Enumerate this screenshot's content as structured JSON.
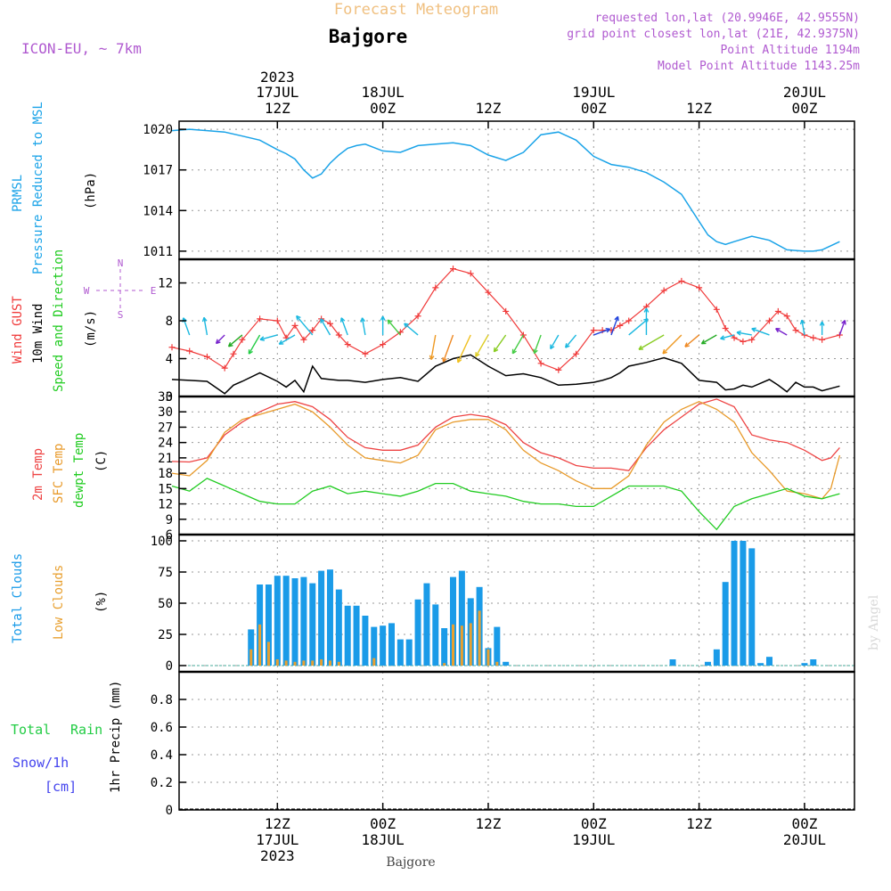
{
  "header": {
    "title": "Forecast Meteogram",
    "location": "Bajgore",
    "model": "ICON-EU, ~ 7km",
    "requested": "requested lon,lat (20.9946E, 42.9555N)",
    "grid_point": "grid point closest lon,lat (21E, 42.9375N)",
    "point_altitude": "Point Altitude 1194m",
    "model_altitude": "Model Point Altitude 1143.25m",
    "footer_location": "Bajgore",
    "watermark": "by Angel"
  },
  "time_axis": {
    "top_labels": [
      {
        "l1": "2023",
        "l2": "17JUL",
        "l3": "12Z"
      },
      {
        "l1": "",
        "l2": "18JUL",
        "l3": "00Z"
      },
      {
        "l1": "",
        "l2": "",
        "l3": "12Z"
      },
      {
        "l1": "",
        "l2": "19JUL",
        "l3": "00Z"
      },
      {
        "l1": "",
        "l2": "",
        "l3": "12Z"
      },
      {
        "l1": "",
        "l2": "20JUL",
        "l3": "00Z"
      }
    ],
    "bottom_labels": [
      {
        "l1": "12Z",
        "l2": "17JUL",
        "l3": "2023"
      },
      {
        "l1": "00Z",
        "l2": "18JUL",
        "l3": ""
      },
      {
        "l1": "12Z",
        "l2": "",
        "l3": ""
      },
      {
        "l1": "00Z",
        "l2": "19JUL",
        "l3": ""
      },
      {
        "l1": "12Z",
        "l2": "",
        "l3": ""
      },
      {
        "l1": "00Z",
        "l2": "20JUL",
        "l3": ""
      }
    ],
    "tick_hours": [
      12,
      24,
      36,
      48,
      60,
      72
    ]
  },
  "colors": {
    "pressure": "#1aa3e8",
    "gust": "#f03a3a",
    "wind": "#000000",
    "temp2m": "#ee4444",
    "sfc": "#e89a2a",
    "dewpt": "#22cc22",
    "total_clouds": "#1a9be8",
    "low_clouds": "#e8a030",
    "rain": "#22cc44",
    "snow": "#4444ee",
    "model": "#b05ad0",
    "title": "#f0c080"
  },
  "panel_labels": {
    "pressure": [
      "PRMSL",
      "Pressure Reduced to MSL",
      "(hPa)"
    ],
    "wind": [
      "Wind GUST",
      "10m Wind",
      "Speed and Direction",
      "(m/s)"
    ],
    "compass": {
      "n": "N",
      "s": "S",
      "w": "W",
      "e": "E"
    },
    "temp": [
      "2m Temp",
      "SFC Temp",
      "dewpt Temp",
      "(C)"
    ],
    "clouds": [
      "Total Clouds",
      "Low Clouds",
      "(%)"
    ],
    "precip": [
      "Total",
      "Rain",
      "Snow/1h",
      "[cm]",
      "1hr Precip (mm)"
    ]
  },
  "chart_data": [
    {
      "type": "line",
      "title": "PRMSL",
      "ylabel": "(hPa)",
      "ylim": [
        1010.4,
        1020.6
      ],
      "yticks": [
        1011,
        1014,
        1017,
        1020
      ],
      "x_hours": [
        0,
        2,
        4,
        6,
        8,
        10,
        12,
        13,
        14,
        15,
        16,
        17,
        18,
        19,
        20,
        21,
        22,
        24,
        26,
        28,
        30,
        32,
        34,
        36,
        38,
        40,
        42,
        44,
        46,
        48,
        50,
        52,
        54,
        56,
        58,
        60,
        61,
        62,
        63,
        64,
        65,
        66,
        68,
        70,
        72,
        73,
        74,
        75,
        76
      ],
      "series": [
        {
          "name": "PRMSL",
          "values": [
            1019.9,
            1020.0,
            1019.9,
            1019.8,
            1019.5,
            1019.2,
            1018.5,
            1018.2,
            1017.8,
            1017.0,
            1016.4,
            1016.7,
            1017.5,
            1018.1,
            1018.6,
            1018.8,
            1018.9,
            1018.4,
            1018.3,
            1018.8,
            1018.9,
            1019.0,
            1018.8,
            1018.1,
            1017.7,
            1018.3,
            1019.6,
            1019.8,
            1019.2,
            1018.0,
            1017.4,
            1017.2,
            1016.8,
            1016.1,
            1015.2,
            1013.2,
            1012.2,
            1011.7,
            1011.5,
            1011.7,
            1011.9,
            1012.1,
            1011.8,
            1011.1,
            1011.0,
            1011.0,
            1011.1,
            1011.4,
            1011.7
          ]
        }
      ]
    },
    {
      "type": "line",
      "title": "Wind GUST / 10m Wind Speed and Direction",
      "ylabel": "(m/s)",
      "ylim": [
        0,
        14.5
      ],
      "yticks": [
        0,
        4,
        8,
        12
      ],
      "x_hours": [
        0,
        2,
        4,
        6,
        7,
        8,
        10,
        12,
        13,
        14,
        15,
        16,
        17,
        18,
        19,
        20,
        22,
        24,
        26,
        28,
        30,
        32,
        34,
        36,
        38,
        40,
        42,
        44,
        46,
        48,
        49,
        50,
        51,
        52,
        54,
        56,
        58,
        60,
        62,
        63,
        64,
        65,
        66,
        68,
        69,
        70,
        71,
        72,
        73,
        74,
        76
      ],
      "series": [
        {
          "name": "Wind GUST",
          "values": [
            5.2,
            4.8,
            4.2,
            3.0,
            4.5,
            6.0,
            8.2,
            8.0,
            6.2,
            7.5,
            6.0,
            7.0,
            8.2,
            7.7,
            6.5,
            5.5,
            4.5,
            5.5,
            6.8,
            8.5,
            11.5,
            13.5,
            13.0,
            11.0,
            9.0,
            6.5,
            3.5,
            2.8,
            4.5,
            7.0,
            7.0,
            7.0,
            7.5,
            8.0,
            9.5,
            11.2,
            12.2,
            11.5,
            9.2,
            7.2,
            6.2,
            5.8,
            6.0,
            8.0,
            9.0,
            8.5,
            7.0,
            6.5,
            6.2,
            6.0,
            6.5
          ]
        },
        {
          "name": "10m Wind",
          "values": [
            1.8,
            1.7,
            1.6,
            0.3,
            1.2,
            1.6,
            2.5,
            1.6,
            1.0,
            1.7,
            0.5,
            3.2,
            1.9,
            1.8,
            1.7,
            1.7,
            1.5,
            1.8,
            2.0,
            1.6,
            3.2,
            4.0,
            4.4,
            3.2,
            2.2,
            2.4,
            2.0,
            1.2,
            1.3,
            1.5,
            1.7,
            2.0,
            2.5,
            3.2,
            3.6,
            4.1,
            3.5,
            1.7,
            1.5,
            0.7,
            0.8,
            1.2,
            1.0,
            1.8,
            1.2,
            0.5,
            1.5,
            1.0,
            1.0,
            0.6,
            1.1
          ]
        }
      ],
      "wind_barbs": {
        "hours": [
          2,
          4,
          6,
          8,
          10,
          12,
          14,
          16,
          18,
          20,
          22,
          24,
          26,
          28,
          30,
          32,
          34,
          36,
          38,
          40,
          42,
          44,
          46,
          48,
          50,
          52,
          54,
          56,
          58,
          60,
          62,
          64,
          66,
          68,
          70,
          72,
          74,
          76
        ],
        "dir_deg": [
          160,
          170,
          45,
          50,
          30,
          75,
          60,
          140,
          150,
          160,
          170,
          180,
          140,
          130,
          10,
          20,
          25,
          30,
          35,
          30,
          20,
          30,
          40,
          250,
          200,
          230,
          180,
          60,
          45,
          50,
          60,
          75,
          100,
          110,
          120,
          170,
          180,
          200
        ],
        "colors": [
          "#1ab8e0",
          "#1ab8e0",
          "#7722cc",
          "#22aa22",
          "#22cc44",
          "#1ab8e0",
          "#1ab8e0",
          "#1ab8e0",
          "#1ab8e0",
          "#1ab8e0",
          "#1ab8e0",
          "#1ab8e0",
          "#44cc44",
          "#1ab8e0",
          "#ee9922",
          "#ee8822",
          "#f0c020",
          "#ddcc22",
          "#88cc22",
          "#44cc44",
          "#44cc44",
          "#1ab8e0",
          "#1ab8e0",
          "#2244dd",
          "#2244dd",
          "#1ab8e0",
          "#1ab8e0",
          "#88cc22",
          "#ee9922",
          "#ee8822",
          "#22aa22",
          "#1ab8e0",
          "#1ab8e0",
          "#1ab8e0",
          "#7722cc",
          "#1ab8e0",
          "#1ab8e0",
          "#7722cc"
        ]
      }
    },
    {
      "type": "line",
      "title": "Temperature",
      "ylabel": "(C)",
      "ylim": [
        6,
        33
      ],
      "yticks": [
        6,
        9,
        12,
        15,
        18,
        21,
        24,
        27,
        30,
        33
      ],
      "x_hours": [
        0,
        2,
        4,
        6,
        8,
        10,
        12,
        14,
        16,
        18,
        20,
        22,
        24,
        26,
        28,
        30,
        32,
        34,
        36,
        38,
        40,
        42,
        44,
        46,
        48,
        50,
        52,
        54,
        56,
        58,
        60,
        62,
        64,
        66,
        68,
        70,
        72,
        74,
        75,
        76
      ],
      "series": [
        {
          "name": "2m Temp",
          "values": [
            20.3,
            20.2,
            21.0,
            25.5,
            28.0,
            30.0,
            31.5,
            32.0,
            31.0,
            28.5,
            25.0,
            23.0,
            22.5,
            22.5,
            23.5,
            27.0,
            29.0,
            29.5,
            29.0,
            27.5,
            24.0,
            22.0,
            21.0,
            19.5,
            19.0,
            19.0,
            18.5,
            23.0,
            26.5,
            29.0,
            31.5,
            32.5,
            31.0,
            25.5,
            24.5,
            24.0,
            22.5,
            20.5,
            21.0,
            23.0
          ]
        },
        {
          "name": "SFC Temp",
          "values": [
            18.0,
            17.5,
            20.5,
            26.0,
            28.5,
            29.5,
            30.5,
            31.5,
            30.0,
            27.0,
            23.5,
            21.0,
            20.5,
            20.0,
            21.5,
            26.5,
            28.0,
            28.5,
            28.5,
            26.5,
            22.5,
            20.0,
            18.5,
            16.5,
            15.0,
            15.0,
            17.5,
            23.5,
            28.0,
            30.5,
            32.0,
            30.5,
            28.0,
            22.0,
            18.5,
            14.5,
            14.0,
            13.0,
            15.0,
            21.5
          ]
        },
        {
          "name": "dewpt Temp",
          "values": [
            15.5,
            14.5,
            17.0,
            15.5,
            14.0,
            12.5,
            12.0,
            12.0,
            14.5,
            15.5,
            14.0,
            14.5,
            14.0,
            13.5,
            14.5,
            16.0,
            16.0,
            14.5,
            14.0,
            13.5,
            12.5,
            12.0,
            12.0,
            11.5,
            11.5,
            13.5,
            15.5,
            15.5,
            15.5,
            14.5,
            10.5,
            7.0,
            11.5,
            13.0,
            14.0,
            15.0,
            13.5,
            13.0,
            13.5,
            14.0
          ]
        }
      ]
    },
    {
      "type": "bar",
      "title": "Clouds",
      "ylabel": "(%)",
      "ylim": [
        -5,
        105
      ],
      "yticks": [
        0,
        25,
        50,
        75,
        100
      ],
      "x_hours": [
        9,
        10,
        11,
        12,
        13,
        14,
        15,
        16,
        17,
        18,
        19,
        20,
        21,
        22,
        23,
        24,
        25,
        26,
        27,
        28,
        29,
        30,
        31,
        32,
        33,
        34,
        35,
        36,
        37,
        38,
        57,
        61,
        62,
        63,
        64,
        65,
        66,
        67,
        68,
        72,
        73
      ],
      "series": [
        {
          "name": "Total Clouds",
          "values": [
            29,
            65,
            65,
            72,
            72,
            70,
            71,
            66,
            76,
            77,
            61,
            48,
            48,
            40,
            31,
            32,
            34,
            21,
            21,
            53,
            66,
            49,
            30,
            71,
            76,
            54,
            63,
            14,
            31,
            3,
            5,
            3,
            13,
            67,
            100,
            100,
            94,
            2,
            7,
            2,
            5
          ]
        },
        {
          "name": "Low Clouds",
          "values": [
            13,
            33,
            19,
            5,
            4,
            3,
            4,
            4,
            5,
            4,
            3,
            0,
            0,
            0,
            6,
            0,
            0,
            0,
            0,
            0,
            0,
            0,
            2,
            33,
            32,
            34,
            44,
            13,
            3,
            0,
            0,
            0,
            0,
            0,
            0,
            0,
            0,
            0,
            0,
            0,
            0
          ]
        }
      ]
    },
    {
      "type": "bar",
      "title": "1hr Precip",
      "ylabel": "1hr Precip (mm)",
      "ylim": [
        0,
        1
      ],
      "yticks": [
        0,
        0.2,
        0.4,
        0.6,
        0.8
      ],
      "series": [
        {
          "name": "Total Rain",
          "values": []
        },
        {
          "name": "Snow/1h",
          "values": []
        }
      ]
    }
  ]
}
